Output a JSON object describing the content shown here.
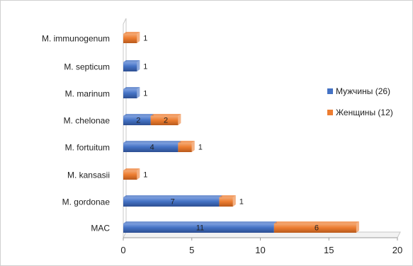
{
  "chart_data": {
    "type": "bar",
    "orientation": "horizontal",
    "stacked": true,
    "categories": [
      "M. immunogenum",
      "M. septicum",
      "M. marinum",
      "M. chelonae",
      "M. fortuitum",
      "M. kansasii",
      "M. gordonae",
      "MAC"
    ],
    "series": [
      {
        "name": "Мужчины (26)",
        "color": "#4472C4",
        "values": [
          0,
          1,
          1,
          2,
          4,
          0,
          7,
          11
        ]
      },
      {
        "name": "Женщины (12)",
        "color": "#ED7D31",
        "values": [
          1,
          0,
          0,
          2,
          1,
          1,
          1,
          6
        ]
      }
    ],
    "data_labels": [
      [
        null,
        "1",
        "1",
        "2",
        "4",
        null,
        "7",
        "11"
      ],
      [
        "1",
        null,
        null,
        "2",
        "1",
        "1",
        "1",
        "6"
      ]
    ],
    "x_ticks": [
      "0",
      "5",
      "10",
      "15",
      "20"
    ],
    "xlim": [
      0,
      20
    ],
    "title": "",
    "xlabel": "",
    "ylabel": "",
    "legend_position": "right",
    "grid": false
  }
}
